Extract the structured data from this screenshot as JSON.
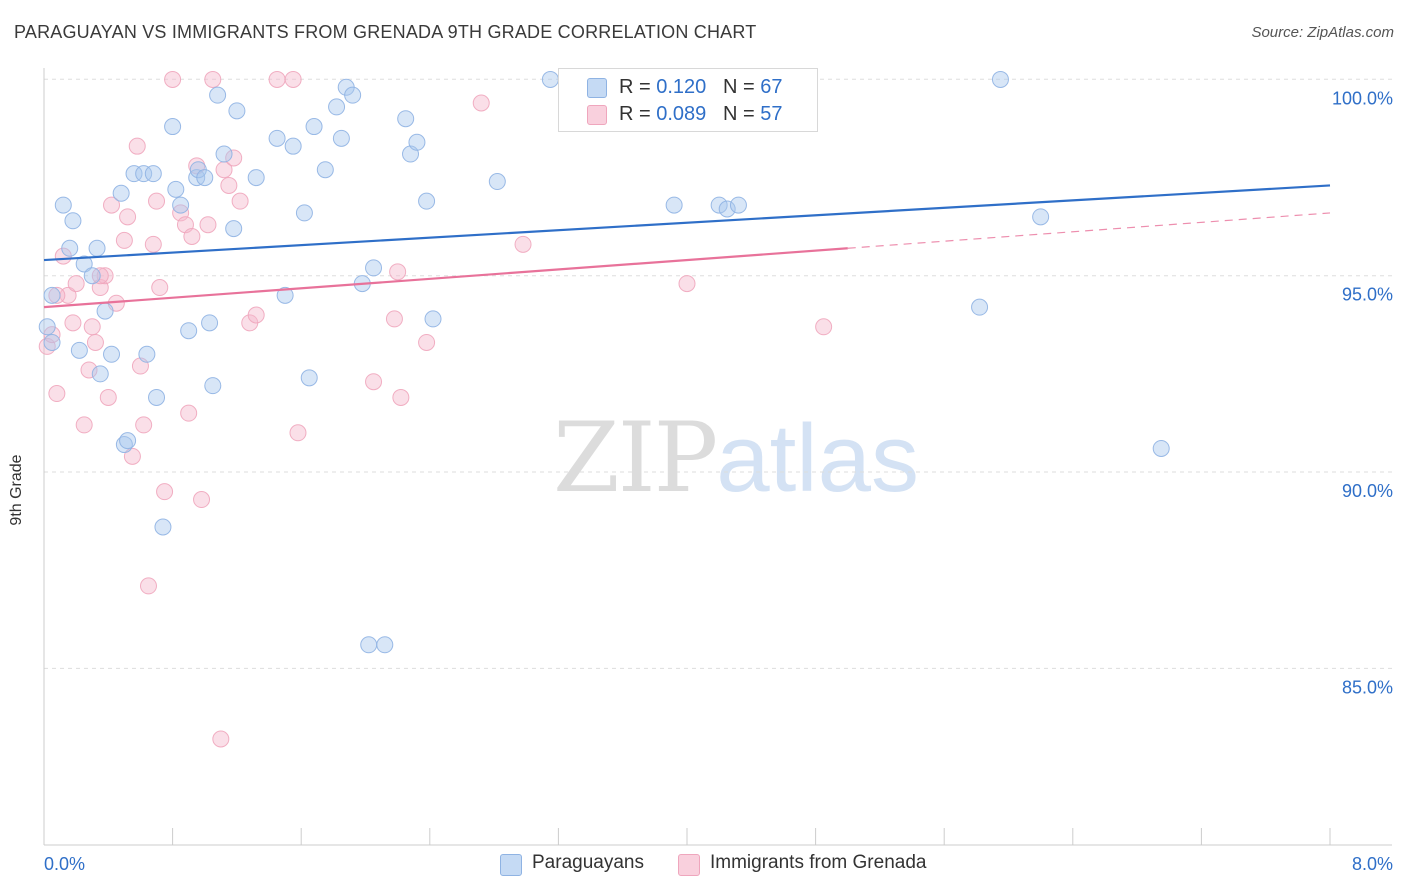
{
  "title": "PARAGUAYAN VS IMMIGRANTS FROM GRENADA 9TH GRADE CORRELATION CHART",
  "source": "Source: ZipAtlas.com",
  "watermark": {
    "zip": "ZIP",
    "atlas": "atlas"
  },
  "colors": {
    "blue": "#a9c8ee",
    "blue_line": "#2f6fc8",
    "pink": "#f5b8cb",
    "pink_line": "#e8729a",
    "axis_text": "#2f6fc8"
  },
  "legend": {
    "r_label": "R =",
    "n_label": "N =",
    "blue": {
      "r": "0.120",
      "n": "67"
    },
    "pink": {
      "r": "0.089",
      "n": "57"
    }
  },
  "chart_data": {
    "type": "scatter",
    "title": "PARAGUAYAN VS IMMIGRANTS FROM GRENADA 9TH GRADE CORRELATION CHART",
    "xlabel": "",
    "ylabel": "9th Grade",
    "xlim": [
      0,
      8
    ],
    "ylim": [
      80.5,
      100.75
    ],
    "x_tick_labels": [
      "0.0%",
      "8.0%"
    ],
    "y_ticks": [
      85,
      90,
      95,
      100
    ],
    "y_tick_labels": [
      "85.0%",
      "90.0%",
      "95.0%",
      "100.0%"
    ],
    "grid": "horizontal dashed",
    "legend_position": "top-center",
    "series": [
      {
        "name": "Paraguayans",
        "color": "#a9c8ee",
        "trend": {
          "x0": 0.0,
          "y0": 95.4,
          "x1": 8.0,
          "y1": 97.3,
          "dashed_from": null
        },
        "points": [
          [
            0.05,
            94.5
          ],
          [
            0.05,
            93.3
          ],
          [
            0.12,
            96.8
          ],
          [
            0.16,
            95.7
          ],
          [
            0.18,
            96.4
          ],
          [
            0.22,
            93.1
          ],
          [
            0.25,
            95.3
          ],
          [
            0.3,
            95.0
          ],
          [
            0.33,
            95.7
          ],
          [
            0.35,
            92.5
          ],
          [
            0.38,
            94.1
          ],
          [
            0.42,
            93.0
          ],
          [
            0.48,
            97.1
          ],
          [
            0.5,
            90.7
          ],
          [
            0.52,
            90.8
          ],
          [
            0.56,
            97.6
          ],
          [
            0.62,
            97.6
          ],
          [
            0.64,
            93.0
          ],
          [
            0.68,
            97.6
          ],
          [
            0.7,
            91.9
          ],
          [
            0.74,
            88.6
          ],
          [
            0.8,
            98.8
          ],
          [
            0.82,
            97.2
          ],
          [
            0.85,
            96.8
          ],
          [
            0.9,
            93.6
          ],
          [
            0.95,
            97.5
          ],
          [
            0.96,
            97.7
          ],
          [
            1.0,
            97.5
          ],
          [
            1.03,
            93.8
          ],
          [
            1.05,
            92.2
          ],
          [
            1.08,
            99.6
          ],
          [
            1.12,
            98.1
          ],
          [
            1.18,
            96.2
          ],
          [
            1.2,
            99.2
          ],
          [
            1.32,
            97.5
          ],
          [
            1.45,
            98.5
          ],
          [
            1.5,
            94.5
          ],
          [
            1.55,
            98.3
          ],
          [
            1.62,
            96.6
          ],
          [
            1.65,
            92.4
          ],
          [
            1.68,
            98.8
          ],
          [
            1.75,
            97.7
          ],
          [
            1.82,
            99.3
          ],
          [
            1.85,
            98.5
          ],
          [
            1.88,
            99.8
          ],
          [
            1.92,
            99.6
          ],
          [
            1.98,
            94.8
          ],
          [
            2.02,
            85.6
          ],
          [
            2.05,
            95.2
          ],
          [
            2.12,
            85.6
          ],
          [
            2.25,
            99.0
          ],
          [
            2.28,
            98.1
          ],
          [
            2.32,
            98.4
          ],
          [
            2.38,
            96.9
          ],
          [
            2.42,
            93.9
          ],
          [
            2.82,
            97.4
          ],
          [
            3.15,
            100.0
          ],
          [
            3.42,
            98.9
          ],
          [
            3.92,
            96.8
          ],
          [
            4.2,
            96.8
          ],
          [
            4.25,
            96.7
          ],
          [
            4.32,
            96.8
          ],
          [
            5.82,
            94.2
          ],
          [
            5.95,
            100.0
          ],
          [
            6.2,
            96.5
          ],
          [
            6.95,
            90.6
          ],
          [
            0.02,
            93.7
          ]
        ]
      },
      {
        "name": "Immigrants from Grenada",
        "color": "#f5b8cb",
        "trend": {
          "x0": 0.0,
          "y0": 94.2,
          "x1": 8.0,
          "y1": 96.6,
          "dashed_from": 5.0
        },
        "points": [
          [
            0.02,
            93.2
          ],
          [
            0.05,
            93.5
          ],
          [
            0.08,
            92.0
          ],
          [
            0.12,
            95.5
          ],
          [
            0.15,
            94.5
          ],
          [
            0.18,
            93.8
          ],
          [
            0.2,
            94.8
          ],
          [
            0.25,
            91.2
          ],
          [
            0.28,
            92.6
          ],
          [
            0.3,
            93.7
          ],
          [
            0.32,
            93.3
          ],
          [
            0.35,
            94.7
          ],
          [
            0.38,
            95.0
          ],
          [
            0.4,
            91.9
          ],
          [
            0.42,
            96.8
          ],
          [
            0.45,
            94.3
          ],
          [
            0.5,
            95.9
          ],
          [
            0.52,
            96.5
          ],
          [
            0.55,
            90.4
          ],
          [
            0.58,
            98.3
          ],
          [
            0.62,
            91.2
          ],
          [
            0.65,
            87.1
          ],
          [
            0.68,
            95.8
          ],
          [
            0.7,
            96.9
          ],
          [
            0.72,
            94.7
          ],
          [
            0.75,
            89.5
          ],
          [
            0.8,
            100.0
          ],
          [
            0.85,
            96.6
          ],
          [
            0.88,
            96.3
          ],
          [
            0.9,
            91.5
          ],
          [
            0.92,
            96.0
          ],
          [
            0.95,
            97.8
          ],
          [
            0.98,
            89.3
          ],
          [
            1.02,
            96.3
          ],
          [
            1.05,
            100.0
          ],
          [
            1.1,
            83.2
          ],
          [
            1.12,
            97.7
          ],
          [
            1.15,
            97.3
          ],
          [
            1.18,
            98.0
          ],
          [
            1.22,
            96.9
          ],
          [
            1.28,
            93.8
          ],
          [
            1.32,
            94.0
          ],
          [
            1.45,
            100.0
          ],
          [
            1.55,
            100.0
          ],
          [
            1.58,
            91.0
          ],
          [
            2.05,
            92.3
          ],
          [
            2.18,
            93.9
          ],
          [
            2.2,
            95.1
          ],
          [
            2.22,
            91.9
          ],
          [
            2.38,
            93.3
          ],
          [
            2.72,
            99.4
          ],
          [
            2.98,
            95.8
          ],
          [
            4.0,
            94.8
          ],
          [
            4.85,
            93.7
          ],
          [
            0.08,
            94.5
          ],
          [
            0.35,
            95.0
          ],
          [
            0.6,
            92.7
          ]
        ]
      }
    ]
  },
  "bottom_legend": [
    "Paraguayans",
    "Immigrants from Grenada"
  ]
}
